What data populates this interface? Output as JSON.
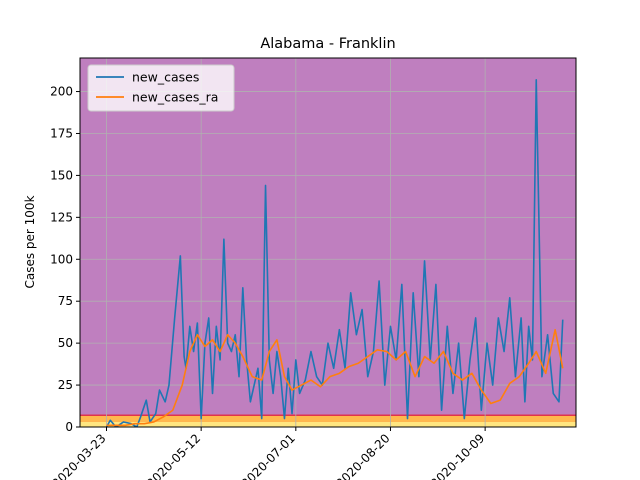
{
  "chart_data": {
    "type": "line",
    "title": "Alabama - Franklin",
    "xlabel": "",
    "ylabel": "Cases per 100k",
    "ylim": [
      0,
      220
    ],
    "xlim": [
      "2020-03-09",
      "2020-11-26"
    ],
    "grid": true,
    "legend_position": "top-left",
    "plot_background": "#bf7fbf",
    "x_tick_labels": [
      "2020-03-23",
      "2020-05-12",
      "2020-07-01",
      "2020-08-20",
      "2020-10-09"
    ],
    "y_ticks": [
      0,
      25,
      50,
      75,
      100,
      125,
      150,
      175,
      200
    ],
    "bands": [
      {
        "from": 0,
        "to": 3,
        "color": "#ffe680"
      },
      {
        "from": 3,
        "to": 7,
        "color": "#ffb84d"
      }
    ],
    "threshold_line": {
      "value": 7,
      "color": "#e0334d"
    },
    "series": [
      {
        "name": "new_cases",
        "color": "#1f77b4",
        "x": [
          "2020-03-23",
          "2020-03-25",
          "2020-03-28",
          "2020-04-01",
          "2020-04-05",
          "2020-04-08",
          "2020-04-10",
          "2020-04-13",
          "2020-04-15",
          "2020-04-18",
          "2020-04-20",
          "2020-04-23",
          "2020-04-25",
          "2020-04-28",
          "2020-05-01",
          "2020-05-03",
          "2020-05-04",
          "2020-05-06",
          "2020-05-08",
          "2020-05-10",
          "2020-05-12",
          "2020-05-14",
          "2020-05-16",
          "2020-05-18",
          "2020-05-20",
          "2020-05-22",
          "2020-05-24",
          "2020-05-26",
          "2020-05-28",
          "2020-05-30",
          "2020-06-01",
          "2020-06-03",
          "2020-06-05",
          "2020-06-07",
          "2020-06-09",
          "2020-06-11",
          "2020-06-13",
          "2020-06-15",
          "2020-06-17",
          "2020-06-19",
          "2020-06-21",
          "2020-06-23",
          "2020-06-25",
          "2020-06-27",
          "2020-06-29",
          "2020-07-01",
          "2020-07-03",
          "2020-07-06",
          "2020-07-09",
          "2020-07-12",
          "2020-07-15",
          "2020-07-18",
          "2020-07-21",
          "2020-07-24",
          "2020-07-27",
          "2020-07-30",
          "2020-08-02",
          "2020-08-05",
          "2020-08-08",
          "2020-08-11",
          "2020-08-14",
          "2020-08-17",
          "2020-08-20",
          "2020-08-23",
          "2020-08-26",
          "2020-08-29",
          "2020-09-01",
          "2020-09-04",
          "2020-09-07",
          "2020-09-10",
          "2020-09-13",
          "2020-09-16",
          "2020-09-19",
          "2020-09-22",
          "2020-09-25",
          "2020-09-28",
          "2020-10-01",
          "2020-10-04",
          "2020-10-07",
          "2020-10-10",
          "2020-10-13",
          "2020-10-16",
          "2020-10-19",
          "2020-10-22",
          "2020-10-25",
          "2020-10-28",
          "2020-10-30",
          "2020-11-01",
          "2020-11-03",
          "2020-11-05",
          "2020-11-08",
          "2020-11-11",
          "2020-11-14",
          "2020-11-17",
          "2020-11-19"
        ],
        "values": [
          0,
          4,
          0,
          3,
          2,
          0,
          6,
          16,
          3,
          8,
          22,
          15,
          25,
          65,
          102,
          42,
          35,
          60,
          45,
          62,
          5,
          50,
          65,
          20,
          60,
          40,
          112,
          50,
          45,
          55,
          30,
          83,
          40,
          15,
          25,
          35,
          5,
          144,
          40,
          20,
          45,
          30,
          5,
          35,
          8,
          40,
          20,
          28,
          45,
          30,
          25,
          50,
          35,
          58,
          35,
          80,
          55,
          70,
          30,
          45,
          87,
          25,
          60,
          40,
          85,
          5,
          80,
          30,
          99,
          40,
          85,
          10,
          60,
          20,
          50,
          5,
          40,
          65,
          10,
          50,
          25,
          65,
          45,
          77,
          30,
          65,
          15,
          60,
          40,
          207,
          30,
          55,
          20,
          15,
          64
        ]
      },
      {
        "name": "new_cases_ra",
        "color": "#ff7f0e",
        "x": [
          "2020-03-23",
          "2020-03-28",
          "2020-04-02",
          "2020-04-07",
          "2020-04-12",
          "2020-04-17",
          "2020-04-22",
          "2020-04-27",
          "2020-05-02",
          "2020-05-06",
          "2020-05-10",
          "2020-05-14",
          "2020-05-18",
          "2020-05-22",
          "2020-05-26",
          "2020-05-30",
          "2020-06-03",
          "2020-06-08",
          "2020-06-13",
          "2020-06-17",
          "2020-06-21",
          "2020-06-25",
          "2020-06-29",
          "2020-07-04",
          "2020-07-09",
          "2020-07-14",
          "2020-07-19",
          "2020-07-24",
          "2020-07-29",
          "2020-08-03",
          "2020-08-08",
          "2020-08-13",
          "2020-08-18",
          "2020-08-23",
          "2020-08-28",
          "2020-09-02",
          "2020-09-07",
          "2020-09-12",
          "2020-09-17",
          "2020-09-22",
          "2020-09-27",
          "2020-10-02",
          "2020-10-07",
          "2020-10-12",
          "2020-10-17",
          "2020-10-22",
          "2020-10-27",
          "2020-11-01",
          "2020-11-05",
          "2020-11-10",
          "2020-11-15",
          "2020-11-19"
        ],
        "values": [
          1,
          1,
          1,
          2,
          2,
          3,
          6,
          10,
          25,
          45,
          55,
          48,
          52,
          45,
          55,
          50,
          42,
          30,
          28,
          45,
          52,
          30,
          22,
          25,
          28,
          24,
          30,
          32,
          36,
          38,
          42,
          46,
          45,
          40,
          45,
          30,
          42,
          38,
          45,
          32,
          28,
          32,
          22,
          14,
          16,
          26,
          30,
          38,
          45,
          32,
          58,
          35
        ]
      }
    ]
  }
}
